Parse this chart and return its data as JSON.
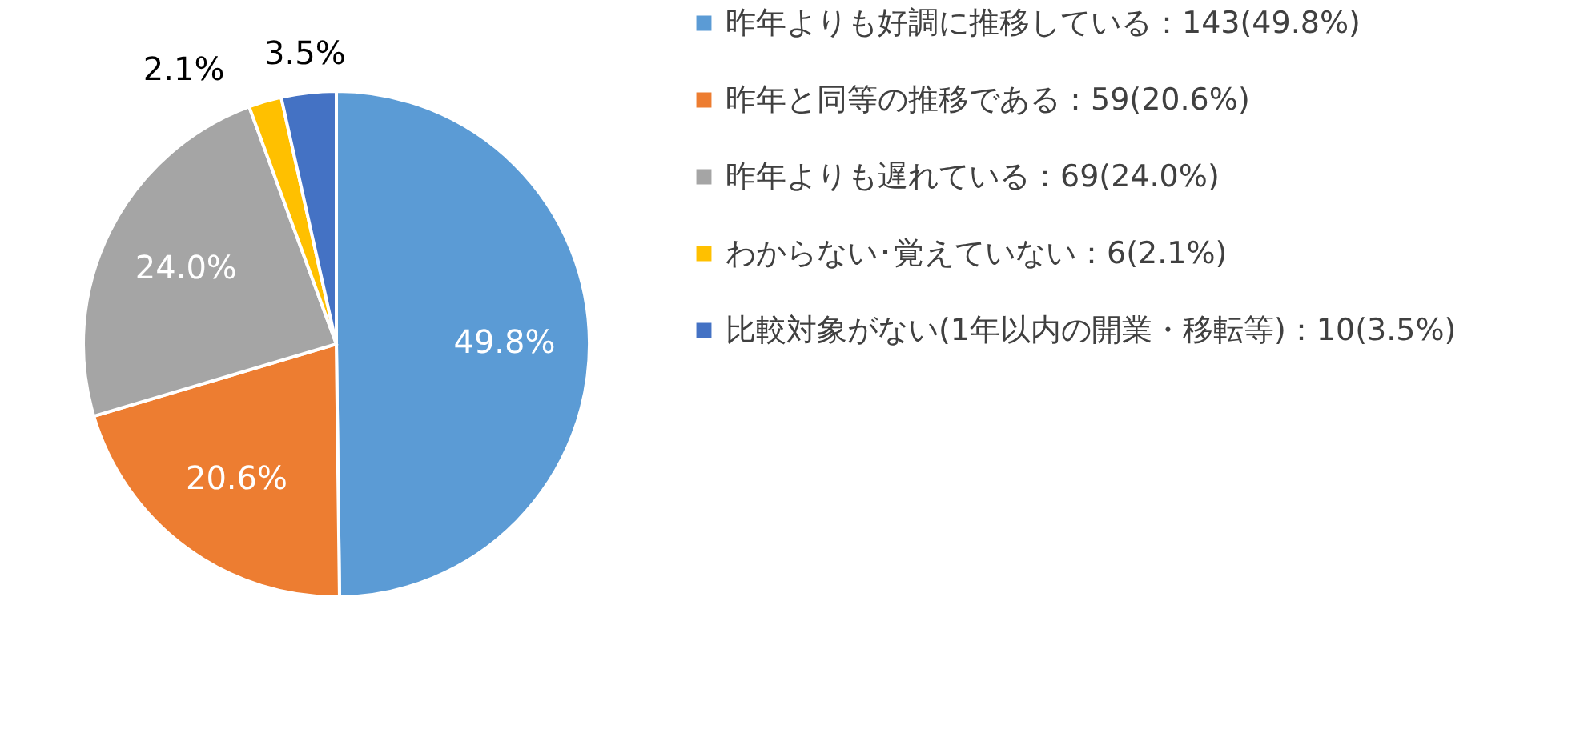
{
  "chart_data": {
    "type": "pie",
    "categories": [
      "昨年よりも好調に推移している：143(49.8%)",
      "昨年と同等の推移である：59(20.6%)",
      "昨年よりも遅れている：69(24.0%)",
      "わからない･覚えていない：6(2.1%)",
      "比較対象がない(1年以内の開業・移転等)：10(3.5%)"
    ],
    "values": [
      49.8,
      20.6,
      24.0,
      2.1,
      3.5
    ],
    "colors": [
      "#5b9bd5",
      "#ed7d31",
      "#a5a5a5",
      "#ffc000",
      "#4472c4"
    ],
    "value_labels": [
      "49.8%",
      "20.6%",
      "24.0%",
      "2.1%",
      "3.5%"
    ],
    "legend": "right"
  }
}
